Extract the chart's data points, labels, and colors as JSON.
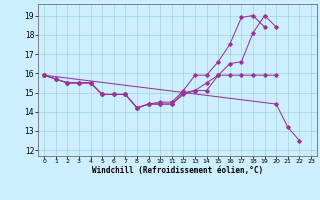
{
  "bg_color": "#cceeff",
  "line_color": "#993399",
  "xlim": [
    -0.5,
    23.5
  ],
  "ylim": [
    11.7,
    19.6
  ],
  "yticks": [
    12,
    13,
    14,
    15,
    16,
    17,
    18,
    19
  ],
  "xticks": [
    0,
    1,
    2,
    3,
    4,
    5,
    6,
    7,
    8,
    9,
    10,
    11,
    12,
    13,
    14,
    15,
    16,
    17,
    18,
    19,
    20,
    21,
    22,
    23
  ],
  "xlabel": "Windchill (Refroidissement éolien,°C)",
  "line1_x": [
    0,
    1,
    2,
    3,
    4,
    5,
    6,
    7,
    8,
    9,
    10,
    11,
    12,
    13,
    14,
    15,
    16,
    17,
    18,
    19,
    20
  ],
  "line1_y": [
    15.9,
    15.7,
    15.5,
    15.5,
    15.5,
    14.9,
    14.9,
    14.9,
    14.2,
    14.4,
    14.4,
    14.4,
    15.0,
    15.1,
    15.1,
    15.9,
    15.9,
    15.9,
    15.9,
    15.9,
    15.9
  ],
  "line2_x": [
    0,
    1,
    2,
    3,
    4,
    5,
    6,
    7,
    8,
    9,
    10,
    11,
    12,
    13,
    14,
    15,
    16,
    17,
    18,
    19,
    20
  ],
  "line2_y": [
    15.9,
    15.7,
    15.5,
    15.5,
    15.5,
    14.9,
    14.9,
    14.9,
    14.2,
    14.4,
    14.4,
    14.4,
    14.9,
    15.1,
    15.5,
    15.9,
    16.5,
    16.6,
    18.1,
    19.0,
    18.4
  ],
  "line3_x": [
    0,
    1,
    2,
    3,
    4,
    5,
    6,
    7,
    8,
    9,
    10,
    11,
    12,
    13,
    14,
    15,
    16,
    17,
    18,
    19
  ],
  "line3_y": [
    15.9,
    15.7,
    15.5,
    15.5,
    15.5,
    14.9,
    14.9,
    14.9,
    14.2,
    14.4,
    14.5,
    14.5,
    15.1,
    15.9,
    15.9,
    16.6,
    17.5,
    18.9,
    19.0,
    18.4
  ],
  "line4_x": [
    0,
    20,
    21,
    22
  ],
  "line4_y": [
    15.9,
    14.4,
    13.2,
    12.5
  ]
}
